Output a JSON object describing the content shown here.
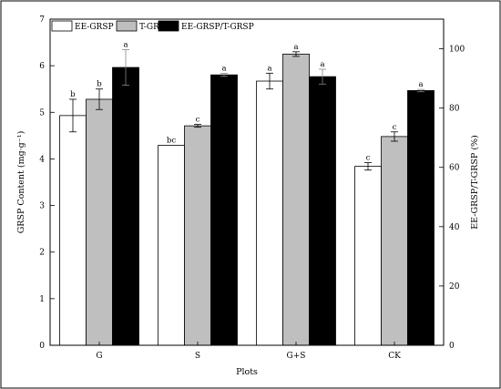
{
  "chart_data": {
    "type": "bar",
    "xlabel": "Plots",
    "ylabel_left": "GRSP Content (mg·g⁻¹)",
    "ylabel_right": "EE-GRSP/T-GRSP (%)",
    "categories": [
      "G",
      "S",
      "G+S",
      "CK"
    ],
    "left_axis": {
      "min": 0,
      "max": 7,
      "ticks": [
        "0",
        "1",
        "2",
        "3",
        "4",
        "5",
        "6",
        "7"
      ]
    },
    "right_axis": {
      "min": 0,
      "max": 110,
      "ticks": [
        "0",
        "20",
        "40",
        "60",
        "80",
        "100"
      ]
    },
    "legend_position": "top-left",
    "series": [
      {
        "name": "EE-GRSP",
        "axis": "left",
        "color": "#ffffff",
        "values": [
          4.93,
          4.29,
          5.67,
          3.84
        ],
        "errors": [
          0.35,
          0.0,
          0.17,
          0.08
        ],
        "labels": [
          "b",
          "bc",
          "a",
          "c"
        ]
      },
      {
        "name": "T-GRSP",
        "axis": "left",
        "color": "#bfbfbf",
        "values": [
          5.28,
          4.71,
          6.25,
          4.48
        ],
        "errors": [
          0.22,
          0.03,
          0.05,
          0.1
        ],
        "labels": [
          "b",
          "c",
          "a",
          "c"
        ]
      },
      {
        "name": "EE-GRSP/T-GRSP",
        "axis": "right",
        "color": "#000000",
        "values": [
          93.7,
          91.2,
          90.6,
          85.9
        ],
        "errors": [
          6.0,
          0.5,
          2.5,
          0.4
        ],
        "labels": [
          "a",
          "a",
          "a",
          "a"
        ]
      }
    ]
  }
}
